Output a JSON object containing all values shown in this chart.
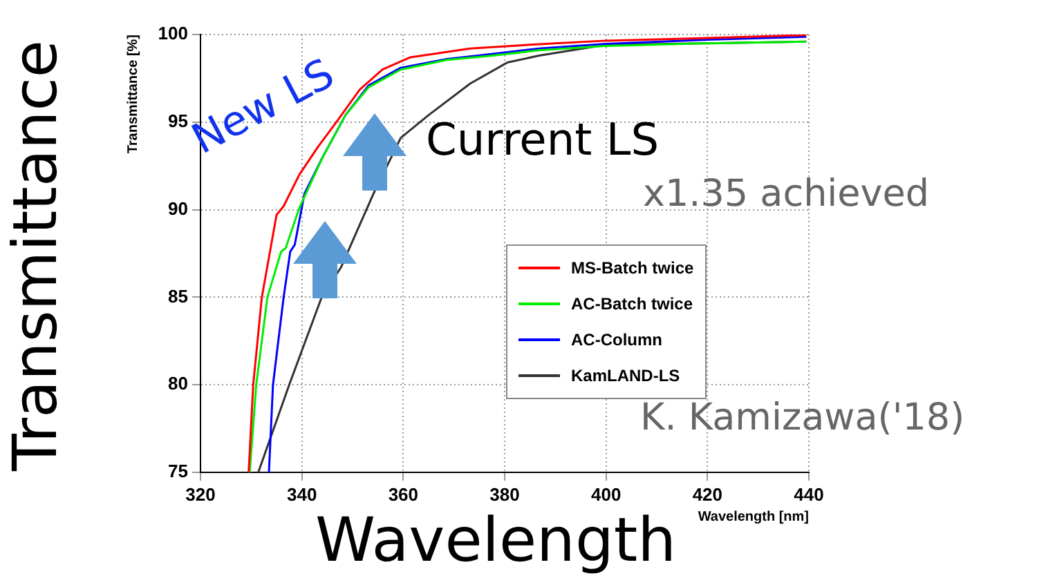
{
  "chart_data": {
    "type": "line",
    "xlabel": "Wavelength [nm]",
    "ylabel": "Transmittance [%]",
    "xlim": [
      320,
      440
    ],
    "xticks": [
      320,
      340,
      360,
      380,
      400,
      420,
      440
    ],
    "ylim": [
      75,
      100
    ],
    "yticks": [
      75,
      80,
      85,
      90,
      95,
      100
    ],
    "grid": true,
    "legend": "right",
    "marker": "none",
    "line_style": "solid",
    "series": [
      {
        "name": "MS-Batch twice",
        "color": "#ff0000",
        "x": [
          329.5,
          330.4,
          332.1,
          335,
          336.4,
          339.5,
          343.2,
          346.8,
          351.4,
          355.9,
          361.4,
          373.2,
          386.8,
          400,
          420,
          439.5
        ],
        "values": [
          75,
          80,
          85,
          89.7,
          90.2,
          92,
          93.6,
          95,
          96.85,
          98,
          98.7,
          99.2,
          99.45,
          99.65,
          99.8,
          99.97
        ]
      },
      {
        "name": "AC-Batch twice",
        "color": "#00ee00",
        "x": [
          329.7,
          331,
          333.2,
          335.9,
          336.8,
          339.5,
          344.1,
          348.6,
          353.2,
          359.5,
          368.6,
          377.7,
          386.8,
          400,
          420,
          439.5
        ],
        "values": [
          75,
          80,
          85,
          87.6,
          87.8,
          90.1,
          93,
          95.4,
          97,
          98,
          98.55,
          98.8,
          99.1,
          99.35,
          99.5,
          99.6
        ]
      },
      {
        "name": "AC-Column",
        "color": "#0000ff",
        "x": [
          333.5,
          334.3,
          336.4,
          337.7,
          338.6,
          340.5,
          344.1,
          348.6,
          353.2,
          359.5,
          368.6,
          377.7,
          386.8,
          400,
          420,
          439.5
        ],
        "values": [
          75,
          80,
          85,
          87.6,
          88,
          90.9,
          93,
          95.4,
          97.1,
          98.1,
          98.6,
          98.9,
          99.2,
          99.47,
          99.7,
          99.87
        ]
      },
      {
        "name": "KamLAND-LS",
        "color": "#333333",
        "x": [
          331.4,
          337.5,
          343.9,
          347.7,
          354.1,
          359.5,
          365,
          373.2,
          380.5,
          386.8,
          400,
          420,
          439.5
        ],
        "values": [
          75,
          80,
          85,
          86.7,
          90.9,
          94.1,
          95.4,
          97.2,
          98.4,
          98.8,
          99.42,
          99.5,
          99.6
        ]
      }
    ],
    "annotations": [
      "Transmittance",
      "Wavelength",
      "New LS",
      "Current LS",
      "x1.35 achieved",
      "K. Kamizawa('18)"
    ]
  }
}
